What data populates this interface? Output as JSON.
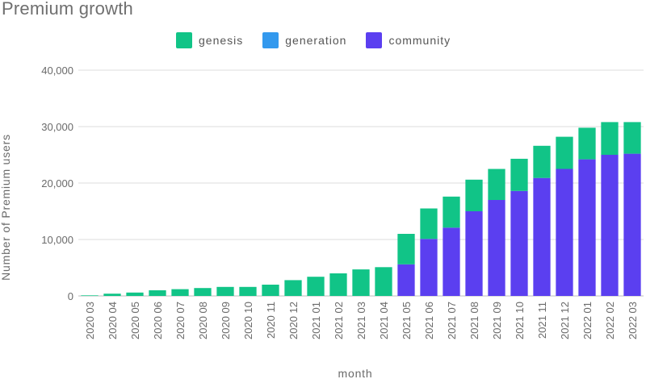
{
  "chart_data": {
    "type": "bar",
    "stacked": true,
    "title": "Premium growth",
    "xlabel": "month",
    "ylabel": "Number of Premium users",
    "ylim": [
      0,
      40000
    ],
    "yticks": [
      0,
      10000,
      20000,
      30000,
      40000
    ],
    "ytick_labels": [
      "0",
      "10,000",
      "20,000",
      "30,000",
      "40,000"
    ],
    "categories": [
      "2020 03",
      "2020 04",
      "2020 05",
      "2020 06",
      "2020 07",
      "2020 08",
      "2020 09",
      "2020 10",
      "2020 11",
      "2020 12",
      "2021 01",
      "2021 02",
      "2021 03",
      "2021 04",
      "2021 05",
      "2021 06",
      "2021 07",
      "2021 08",
      "2021 09",
      "2021 10",
      "2021 11",
      "2021 12",
      "2022 01",
      "2022 02",
      "2022 03"
    ],
    "legend_position": "top",
    "series": [
      {
        "name": "community",
        "color": "#5b3ff0",
        "values": [
          0,
          0,
          0,
          0,
          0,
          0,
          0,
          0,
          0,
          0,
          0,
          0,
          0,
          0,
          5600,
          10100,
          12100,
          15000,
          17000,
          18600,
          20900,
          22500,
          24200,
          25000,
          25200
        ]
      },
      {
        "name": "generation",
        "color": "#3399ee",
        "values": [
          0,
          0,
          0,
          0,
          0,
          0,
          0,
          0,
          0,
          0,
          0,
          0,
          0,
          0,
          0,
          0,
          0,
          0,
          0,
          0,
          0,
          0,
          0,
          0,
          0
        ]
      },
      {
        "name": "genesis",
        "color": "#11c487",
        "values": [
          100,
          400,
          600,
          1000,
          1200,
          1400,
          1600,
          1600,
          2000,
          2800,
          3400,
          4000,
          4700,
          5100,
          5400,
          5400,
          5500,
          5600,
          5500,
          5700,
          5700,
          5700,
          5600,
          5800,
          5600
        ]
      }
    ],
    "legend": [
      {
        "name": "genesis",
        "color": "#11c487"
      },
      {
        "name": "generation",
        "color": "#3399ee"
      },
      {
        "name": "community",
        "color": "#5b3ff0"
      }
    ]
  }
}
